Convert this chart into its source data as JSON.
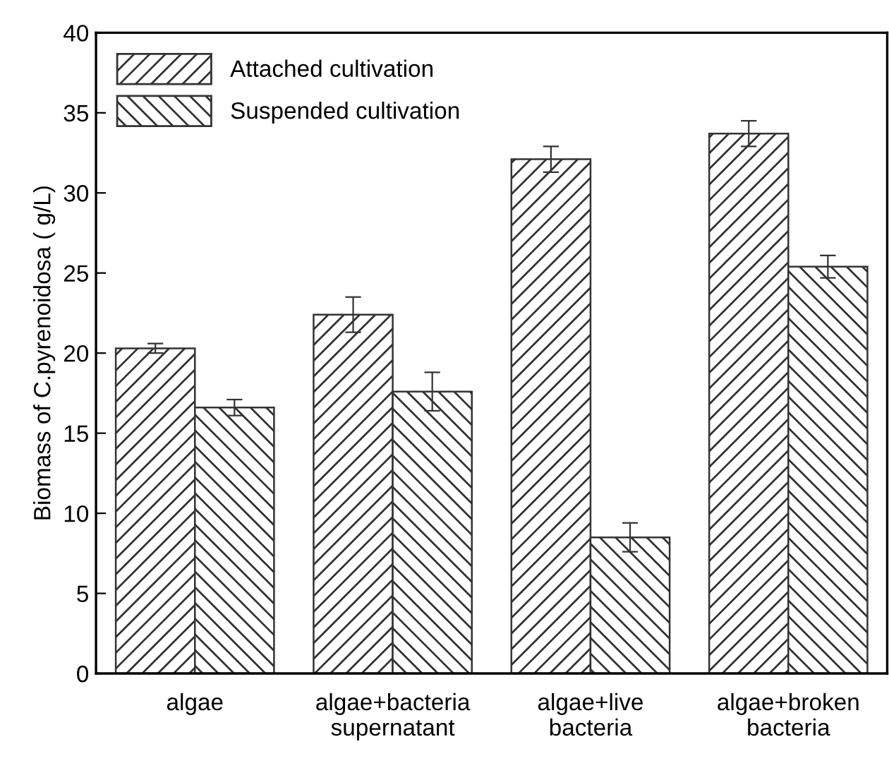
{
  "chart_data": {
    "type": "bar",
    "ylabel": "Biomass of C.pyrenoidosa ( g/L)",
    "categories": [
      "algae",
      "algae+bacteria\nsupernatant",
      "algae+live\nbacteria",
      "algae+broken\nbacteria"
    ],
    "series": [
      {
        "name": "Attached cultivation",
        "color": "#333333",
        "values": [
          20.3,
          22.4,
          32.1,
          33.7
        ],
        "errors": [
          0.3,
          1.1,
          0.8,
          0.8
        ]
      },
      {
        "name": "Suspended cultivation",
        "color": "#333333",
        "values": [
          16.6,
          17.6,
          8.5,
          25.4
        ],
        "errors": [
          0.5,
          1.2,
          0.9,
          0.7
        ]
      }
    ],
    "ylim": [
      0,
      40
    ],
    "yticks": [
      0,
      5,
      10,
      15,
      20,
      25,
      30,
      35,
      40
    ],
    "grid": false,
    "legend": "top left"
  }
}
